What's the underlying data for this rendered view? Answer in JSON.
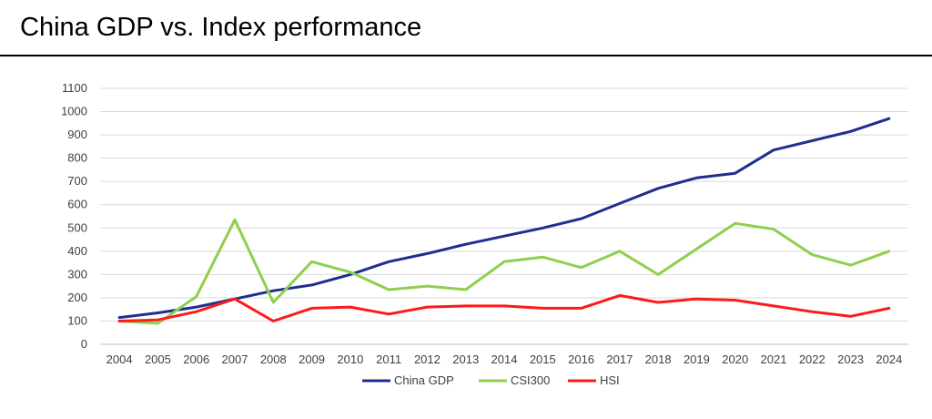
{
  "page": {
    "title": "China GDP vs. Index performance"
  },
  "chart_data": {
    "type": "line",
    "x": [
      "2004",
      "2005",
      "2006",
      "2007",
      "2008",
      "2009",
      "2010",
      "2011",
      "2012",
      "2013",
      "2014",
      "2015",
      "2016",
      "2017",
      "2018",
      "2019",
      "2020",
      "2021",
      "2022",
      "2023",
      "2024"
    ],
    "ylim": [
      0,
      1100
    ],
    "yticks": [
      0,
      100,
      200,
      300,
      400,
      500,
      600,
      700,
      800,
      900,
      1000,
      1100
    ],
    "grid": true,
    "legend": "bottom",
    "series": [
      {
        "name": "China GDP",
        "color": "#1f2f8f",
        "values": [
          115,
          135,
          160,
          195,
          230,
          255,
          300,
          355,
          390,
          430,
          465,
          500,
          540,
          605,
          670,
          715,
          735,
          835,
          875,
          915,
          970
        ]
      },
      {
        "name": "CSI300",
        "color": "#8fcf4f",
        "values": [
          100,
          90,
          205,
          535,
          180,
          355,
          310,
          235,
          250,
          235,
          355,
          375,
          330,
          400,
          300,
          410,
          520,
          495,
          385,
          340,
          400
        ]
      },
      {
        "name": "HSI",
        "color": "#ff1a1a",
        "values": [
          100,
          105,
          140,
          195,
          100,
          155,
          160,
          130,
          160,
          165,
          165,
          155,
          155,
          210,
          180,
          195,
          190,
          165,
          140,
          120,
          155
        ]
      }
    ]
  }
}
